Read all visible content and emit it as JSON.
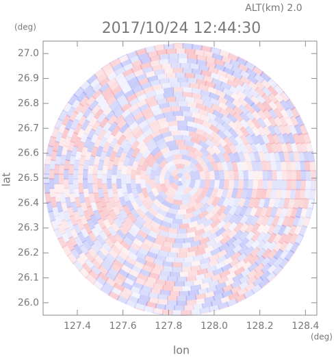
{
  "chart_data": {
    "type": "radar-ppi",
    "title": "2017/10/24 12:44:30",
    "subtitle": "ALT(km) 2.0",
    "x_label": "lon",
    "y_label": "lat",
    "x_unit": "(deg)",
    "y_unit": "(deg)",
    "xlim": [
      127.25,
      128.45
    ],
    "ylim": [
      25.95,
      27.05
    ],
    "xticks": [
      127.4,
      127.6,
      127.8,
      {
        "value": 128,
        "label": "128.0"
      },
      128.2,
      128.4
    ],
    "yticks": [
      {
        "value": 26,
        "label": "26.0"
      },
      26.1,
      26.2,
      26.3,
      26.4,
      26.5,
      26.6,
      26.7,
      26.8,
      26.9,
      {
        "value": 27,
        "label": "27.0"
      }
    ]
  }
}
